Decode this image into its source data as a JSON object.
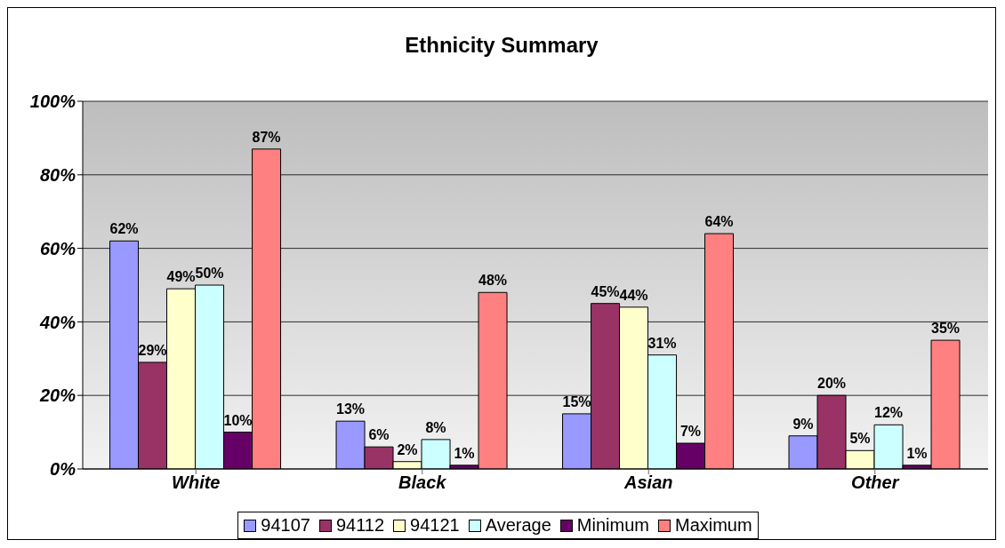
{
  "chart_data": {
    "type": "bar",
    "title": "Ethnicity Summary",
    "categories": [
      "White",
      "Black",
      "Asian",
      "Other"
    ],
    "series": [
      {
        "name": "94107",
        "color": "#9999ff",
        "values": [
          62,
          13,
          15,
          9
        ],
        "value_labels": [
          "62%",
          "13%",
          "15%",
          "9%"
        ]
      },
      {
        "name": "94112",
        "color": "#993366",
        "values": [
          29,
          6,
          45,
          20
        ],
        "value_labels": [
          "29%",
          "6%",
          "45%",
          "20%"
        ]
      },
      {
        "name": "94121",
        "color": "#ffffcc",
        "values": [
          49,
          2,
          44,
          5
        ],
        "value_labels": [
          "49%",
          "2%",
          "44%",
          "5%"
        ]
      },
      {
        "name": "Average",
        "color": "#ccffff",
        "values": [
          50,
          8,
          31,
          12
        ],
        "value_labels": [
          "50%",
          "8%",
          "31%",
          "12%"
        ]
      },
      {
        "name": "Minimum",
        "color": "#660066",
        "values": [
          10,
          1,
          7,
          1
        ],
        "value_labels": [
          "10%",
          "1%",
          "7%",
          "1%"
        ]
      },
      {
        "name": "Maximum",
        "color": "#ff8080",
        "values": [
          87,
          48,
          64,
          35
        ],
        "value_labels": [
          "87%",
          "48%",
          "64%",
          "35%"
        ]
      }
    ],
    "ylim": [
      0,
      100
    ],
    "yticks": [
      {
        "value": 0,
        "label": "0%"
      },
      {
        "value": 20,
        "label": "20%"
      },
      {
        "value": 40,
        "label": "40%"
      },
      {
        "value": 60,
        "label": "60%"
      },
      {
        "value": 80,
        "label": "80%"
      },
      {
        "value": 100,
        "label": "100%"
      }
    ],
    "grid": "y",
    "legend": "bottom"
  }
}
